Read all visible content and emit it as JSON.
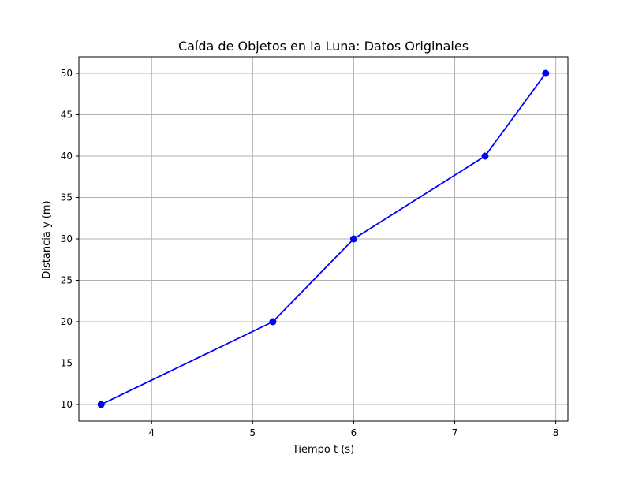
{
  "chart_data": {
    "type": "line",
    "title": "Caída de Objetos en la Luna: Datos Originales",
    "xlabel": "Tiempo t (s)",
    "ylabel": "Distancia y (m)",
    "x": [
      3.5,
      5.2,
      6.0,
      7.3,
      7.9
    ],
    "series": [
      {
        "values": [
          10,
          20,
          30,
          40,
          50
        ],
        "color": "#0000ff",
        "marker": "circle"
      }
    ],
    "xlim": [
      3.28,
      8.12
    ],
    "ylim": [
      8.0,
      52.0
    ],
    "xticks": [
      4,
      5,
      6,
      7,
      8
    ],
    "yticks": [
      10,
      15,
      20,
      25,
      30,
      35,
      40,
      45,
      50
    ],
    "xtick_labels": [
      "4",
      "5",
      "6",
      "7",
      "8"
    ],
    "ytick_labels": [
      "10",
      "15",
      "20",
      "25",
      "30",
      "35",
      "40",
      "45",
      "50"
    ],
    "grid": true,
    "grid_color": "#b0b0b0"
  }
}
